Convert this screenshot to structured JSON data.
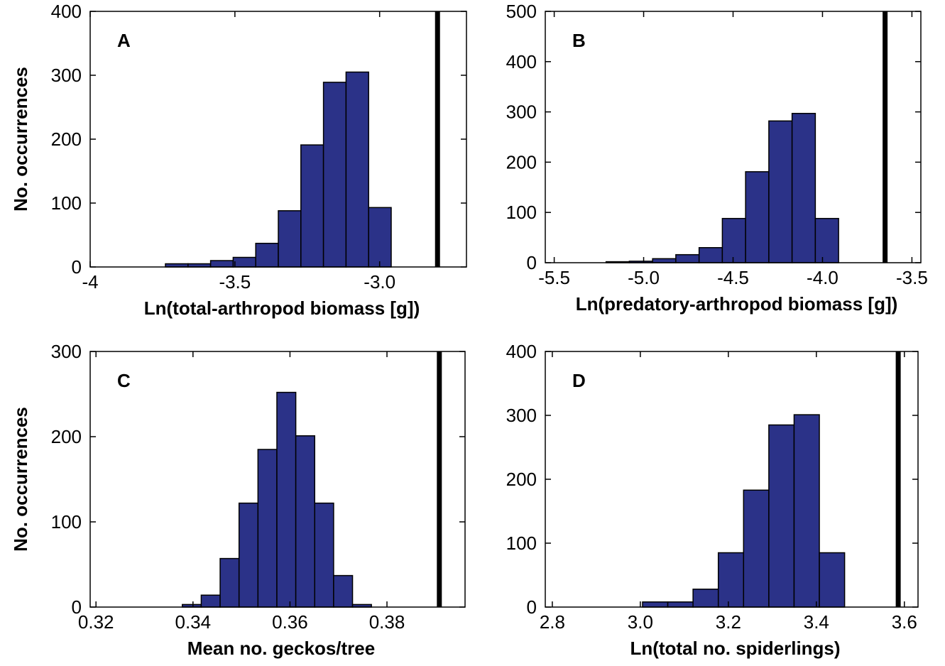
{
  "chart_data": [
    {
      "type": "histogram",
      "panel_label": "A",
      "xlabel": "Ln(total-arthropod biomass [g])",
      "ylabel": "No. occurrences",
      "bins": [
        -3.74,
        -3.662,
        -3.584,
        -3.506,
        -3.428,
        -3.35,
        -3.272,
        -3.194,
        -3.116,
        -3.038,
        -2.96
      ],
      "values": [
        5,
        5,
        10,
        15,
        37,
        88,
        191,
        289,
        305,
        93
      ],
      "color": "#2b3288",
      "vline": -2.8,
      "xlim": [
        -4,
        -2.7
      ],
      "xticks": [
        -4,
        -3.5,
        {
          "value": -3.0,
          "label": "-3.0"
        }
      ],
      "ylim": [
        0,
        400
      ],
      "yticks": [
        0,
        100,
        200,
        300,
        400
      ]
    },
    {
      "type": "histogram",
      "panel_label": "B",
      "xlabel": "Ln(predatory-arthropod biomass [g])",
      "bins": [
        -5.21,
        -5.08,
        -4.95,
        -4.82,
        -4.69,
        -4.56,
        -4.43,
        -4.3,
        -4.17,
        -4.04,
        -3.91
      ],
      "values": [
        2,
        3,
        8,
        16,
        30,
        88,
        181,
        282,
        297,
        88
      ],
      "color": "#2b3288",
      "vline": -3.65,
      "xlim": [
        -5.55,
        -3.45
      ],
      "xticks": [
        -5.5,
        {
          "value": -5.0,
          "label": "-5.0"
        },
        -4.5,
        {
          "value": -4.0,
          "label": "-4.0"
        },
        -3.5
      ],
      "ylim": [
        0,
        500
      ],
      "yticks": [
        0,
        100,
        200,
        300,
        400,
        500
      ]
    },
    {
      "type": "histogram",
      "panel_label": "C",
      "xlabel": "Mean no. geckos/tree",
      "ylabel": "No. occurrences",
      "bins": [
        0.3378,
        0.3417,
        0.3456,
        0.3495,
        0.3534,
        0.3573,
        0.3612,
        0.3651,
        0.369,
        0.3729,
        0.3768
      ],
      "values": [
        3,
        14,
        57,
        122,
        185,
        252,
        201,
        122,
        37,
        3
      ],
      "color": "#2b3288",
      "vline": 0.3908,
      "xlim": [
        0.3188,
        0.3961
      ],
      "xticks": [
        0.32,
        0.34,
        0.36,
        0.38
      ],
      "ylim": [
        0,
        300
      ],
      "yticks": [
        0,
        100,
        200,
        300
      ]
    },
    {
      "type": "histogram",
      "panel_label": "D",
      "xlabel": "Ln(total no. spiderlings)",
      "bins": [
        3.005,
        3.0624,
        3.1198,
        3.1772,
        3.2346,
        3.292,
        3.3494,
        3.4068,
        3.4642
      ],
      "values": [
        8,
        8,
        28,
        85,
        183,
        285,
        301,
        85
      ],
      "color": "#2b3288",
      "vline": 3.586,
      "xlim": [
        2.784,
        3.631
      ],
      "xticks": [
        2.8,
        {
          "value": 3.0,
          "label": "3.0"
        },
        3.2,
        3.4,
        3.6
      ],
      "ylim": [
        0,
        400
      ],
      "yticks": [
        0,
        100,
        200,
        300,
        400
      ]
    }
  ]
}
